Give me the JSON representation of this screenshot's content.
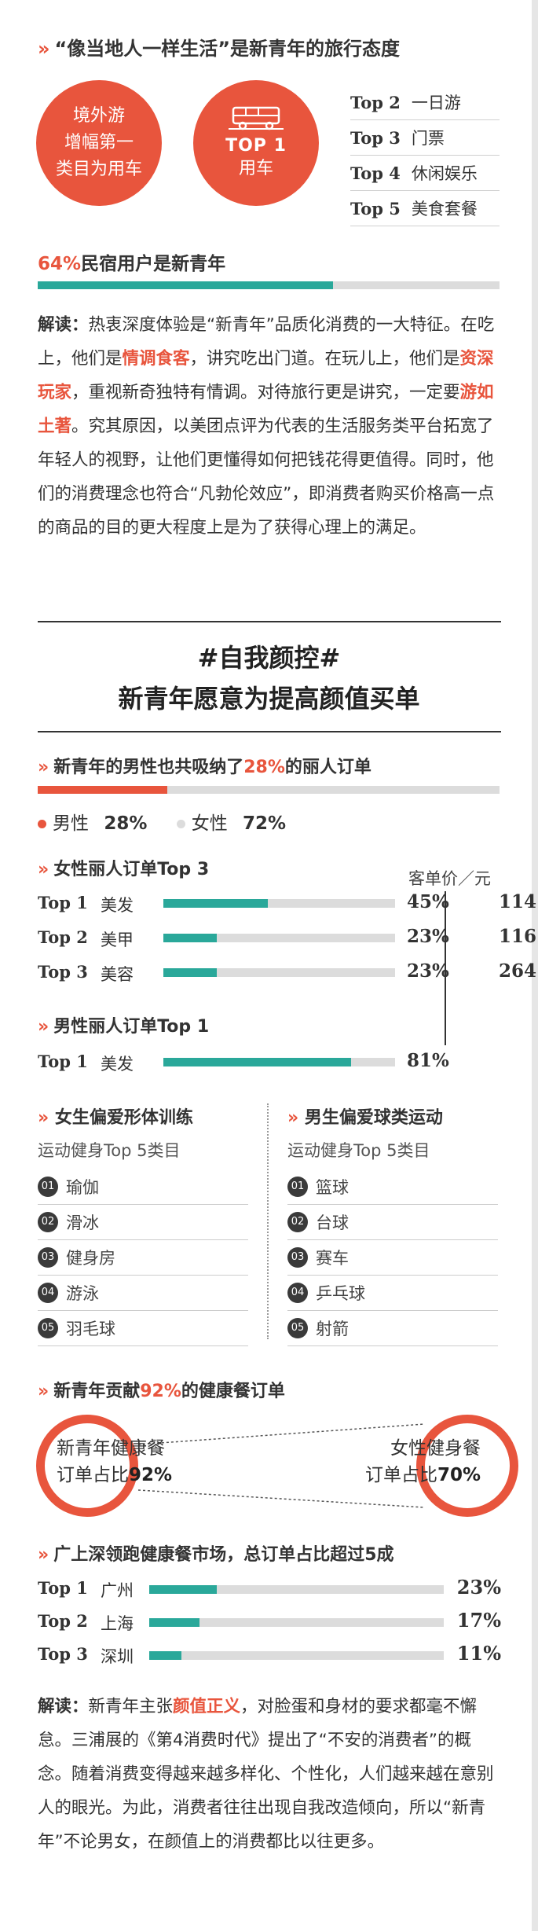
{
  "colors": {
    "accent": "#e8553d",
    "teal": "#2aa89a",
    "track": "#dcdcdc",
    "text": "#333333"
  },
  "s1": {
    "header": "“像当地人一样生活”是新青年的旅行态度",
    "circle_left": [
      "境外游",
      "增幅第一",
      "类目为用车"
    ],
    "circle_right_top": "TOP 1",
    "circle_right_label": "用车",
    "circle_right_icon": "bus-icon",
    "top_list": [
      {
        "rank": "Top 2",
        "name": "一日游"
      },
      {
        "rank": "Top 3",
        "name": "门票"
      },
      {
        "rank": "Top 4",
        "name": "休闲娱乐"
      },
      {
        "rank": "Top 5",
        "name": "美食套餐"
      }
    ],
    "stat_pct": "64%",
    "stat_text": "民宿用户是新青年",
    "stat_value": 0.64
  },
  "p1": {
    "label": "解读：",
    "t1": "热衷深度体验是“新青年”品质化消费的一大特征。在吃上，他们是",
    "e1": "情调食客",
    "t2": "，讲究吃出门道。在玩儿上，他们是",
    "e2": "资深玩家",
    "t3": "，重视新奇独特有情调。对待旅行更是讲究，一定要",
    "e3": "游如土著",
    "t4": "。究其原因，以美团点评为代表的生活服务类平台拓宽了年轻人的视野，让他们更懂得如何把钱花得更值得。同时，他们的消费理念也符合“凡勃伦效应”，即消费者购买价格高一点的商品的目的更大程度上是为了获得心理上的满足。"
  },
  "s2": {
    "tag": "#自我颜控#",
    "title": "新青年愿意为提高颜值买单",
    "h1a": "新青年的男性也共吸纳了",
    "h1pct": "28%",
    "h1b": "的丽人订单",
    "male_share": 0.28,
    "legend_male": "男性",
    "legend_male_pct": "28%",
    "legend_female": "女性",
    "legend_female_pct": "72%",
    "female_header": "女性丽人订单Top 3",
    "price_header": "客单价／元",
    "female_rows": [
      {
        "rank": "Top 1",
        "name": "美发",
        "pct": "45%",
        "value": 0.45,
        "price": "114"
      },
      {
        "rank": "Top 2",
        "name": "美甲",
        "pct": "23%",
        "value": 0.23,
        "price": "116"
      },
      {
        "rank": "Top 3",
        "name": "美容",
        "pct": "23%",
        "value": 0.23,
        "price": "264"
      }
    ],
    "male_header": "男性丽人订单Top 1",
    "male_rows": [
      {
        "rank": "Top 1",
        "name": "美发",
        "pct": "81%",
        "value": 0.81
      }
    ]
  },
  "s3": {
    "left_header": "女生偏爱形体训练",
    "left_sub": "运动健身Top 5类目",
    "left_items": [
      "瑜伽",
      "滑冰",
      "健身房",
      "游泳",
      "羽毛球"
    ],
    "right_header": "男生偏爱球类运动",
    "right_sub": "运动健身Top 5类目",
    "right_items": [
      "篮球",
      "台球",
      "赛车",
      "乒乓球",
      "射箭"
    ],
    "nums": [
      "01",
      "02",
      "03",
      "04",
      "05"
    ]
  },
  "s4": {
    "ha": "新青年贡献",
    "hpct": "92%",
    "hb": "的健康餐订单",
    "left_l1": "新青年健康餐",
    "left_l2a": "订单占比",
    "left_l2b": "92%",
    "right_l1": "女性健身餐",
    "right_l2a": "订单占比",
    "right_l2b": "70%",
    "left_value": 0.92,
    "right_value": 0.7
  },
  "s5": {
    "header": "广上深领跑健康餐市场，总订单占比超过5成",
    "rows": [
      {
        "rank": "Top 1",
        "name": "广州",
        "pct": "23%",
        "value": 0.23
      },
      {
        "rank": "Top 2",
        "name": "上海",
        "pct": "17%",
        "value": 0.17
      },
      {
        "rank": "Top 3",
        "name": "深圳",
        "pct": "11%",
        "value": 0.11
      }
    ]
  },
  "p2": {
    "label": "解读：",
    "t1": "新青年主张",
    "e1": "颜值正义",
    "t2": "，对脸蛋和身材的要求都毫不懈怠。三浦展的《第4消费时代》提出了“不安的消费者”的概念。随着消费变得越来越多样化、个性化，人们越来越在意别人的眼光。为此，消费者往往出现自我改造倾向，所以“新青年”不论男女，在颜值上的消费都比以往更多。"
  }
}
